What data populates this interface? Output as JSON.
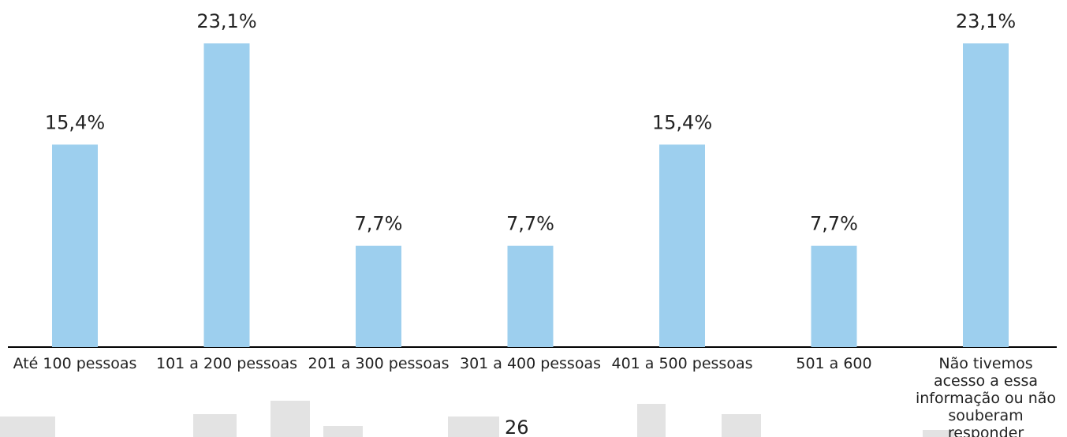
{
  "chart_data": {
    "type": "bar",
    "categories": [
      "Até 100 pessoas",
      "101 a 200 pessoas",
      "201 a 300 pessoas",
      "301 a 400 pessoas",
      "401 a 500 pessoas",
      "501 a 600",
      "Não tivemos acesso a essa informação ou não souberam responder"
    ],
    "values": [
      15.4,
      23.1,
      7.7,
      7.7,
      15.4,
      7.7,
      23.1
    ],
    "value_labels": [
      "15,4%",
      "23,1%",
      "7,7%",
      "7,7%",
      "15,4%",
      "7,7%",
      "23,1%"
    ],
    "color": "#9dcfee"
  },
  "page_number": "26"
}
